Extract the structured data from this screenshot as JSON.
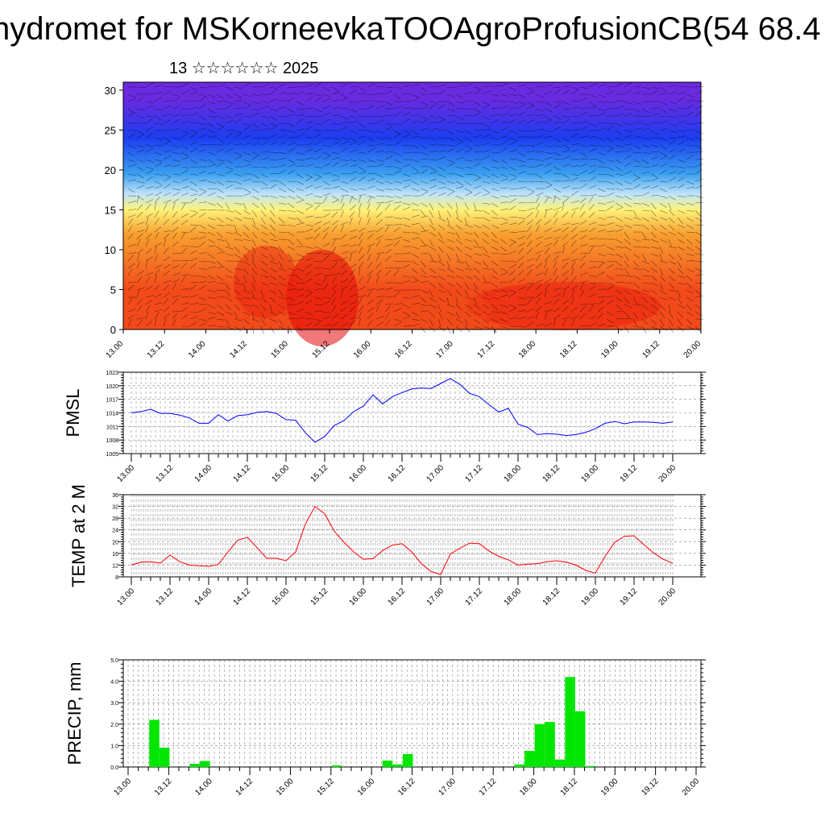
{
  "title": "hydromet for MSKorneevkaTOOAgroProfusionCB(54 68.4",
  "subtitle": "13 ☆☆☆☆☆☆ 2025",
  "time_ticks": [
    "13.00",
    "13.12",
    "14.00",
    "14.12",
    "15.00",
    "15.12",
    "16.00",
    "16.12",
    "17.00",
    "17.12",
    "18.00",
    "18.12",
    "19.00",
    "19.12",
    "20.00"
  ],
  "chart_data": [
    {
      "type": "heatmap",
      "name": "cross-section",
      "ylim": [
        0,
        31
      ],
      "yticks": [
        0,
        5,
        10,
        15,
        20,
        25,
        30
      ],
      "grid": false,
      "color_scale": [
        "#e81010",
        "#f0521a",
        "#f88a30",
        "#fcc84a",
        "#fff680",
        "#bfe8ff",
        "#3a9cf0",
        "#1b3ef0",
        "#4b1ae0",
        "#6e2ae0"
      ],
      "bands": [
        {
          "y": [
            0,
            10
          ],
          "color": "#f24a1a"
        },
        {
          "y": [
            10,
            14
          ],
          "color": "#f8a030"
        },
        {
          "y": [
            14,
            16
          ],
          "color": "#fff27a"
        },
        {
          "y": [
            16,
            18
          ],
          "color": "#bfe4f8"
        },
        {
          "y": [
            18,
            21
          ],
          "color": "#3aa0f0"
        },
        {
          "y": [
            21,
            27
          ],
          "color": "#1b3ef0"
        },
        {
          "y": [
            27,
            31
          ],
          "color": "#6a2ae0"
        }
      ]
    },
    {
      "type": "line",
      "ylabel": "PMSL",
      "ylim": [
        1005,
        1023
      ],
      "yticks": [
        1005,
        1008,
        1011,
        1014,
        1017,
        1020,
        1023
      ],
      "grid": true,
      "color": "#0000ff",
      "x": [
        0,
        1,
        2,
        3,
        4,
        5,
        6,
        7,
        8,
        9,
        10,
        11,
        12,
        13,
        14,
        15,
        16,
        17,
        18,
        19,
        20,
        21,
        22,
        23,
        24,
        25,
        26,
        27,
        28,
        29,
        30,
        31,
        32,
        33,
        34,
        35,
        36,
        37,
        38,
        39,
        40,
        41,
        42,
        43,
        44,
        45,
        46,
        47,
        48,
        49,
        50,
        51,
        52,
        53,
        54,
        55,
        56
      ],
      "values": [
        1014.0,
        1014.3,
        1014.8,
        1013.9,
        1013.9,
        1013.5,
        1012.9,
        1011.7,
        1011.7,
        1013.6,
        1012.2,
        1013.4,
        1013.6,
        1014.1,
        1014.3,
        1013.9,
        1012.5,
        1012.4,
        1009.6,
        1007.5,
        1008.8,
        1011.2,
        1012.3,
        1014.3,
        1015.5,
        1018.0,
        1016.0,
        1017.6,
        1018.5,
        1019.3,
        1019.5,
        1019.4,
        1020.5,
        1021.6,
        1020.3,
        1018.3,
        1017.6,
        1015.8,
        1014.2,
        1015.0,
        1011.5,
        1010.8,
        1009.2,
        1009.4,
        1009.3,
        1009.0,
        1009.2,
        1009.7,
        1010.5,
        1011.7,
        1012.1,
        1011.6,
        1012.0,
        1012.0,
        1011.9,
        1011.7,
        1012.0
      ]
    },
    {
      "type": "line",
      "ylabel": "TEMP at 2 M",
      "ylim": [
        8,
        36
      ],
      "yticks": [
        8,
        12,
        16,
        20,
        24,
        28,
        32,
        36
      ],
      "grid": true,
      "color": "#ff0000",
      "x": [
        0,
        2,
        4,
        6,
        8,
        10,
        12,
        14,
        16,
        18,
        20,
        22,
        24,
        26,
        28,
        30,
        32,
        34,
        36,
        38,
        40,
        42,
        44,
        46,
        48,
        50,
        52,
        54,
        56,
        58,
        60,
        62,
        64,
        66,
        68,
        70,
        72,
        74,
        76,
        78,
        80,
        82,
        84,
        86,
        88,
        90,
        92,
        94,
        96,
        98,
        100,
        102,
        104,
        106,
        108,
        110,
        112
      ],
      "values": [
        12.0,
        13.0,
        13.2,
        12.7,
        15.4,
        13.2,
        12.0,
        11.8,
        11.6,
        12.2,
        16.5,
        20.5,
        21.5,
        18.0,
        14.3,
        14.3,
        13.5,
        16.5,
        26.0,
        32.0,
        29.5,
        23.5,
        19.8,
        16.5,
        14.0,
        14.2,
        17.0,
        18.8,
        19.3,
        16.5,
        12.5,
        9.8,
        8.8,
        15.8,
        17.8,
        19.5,
        19.3,
        16.8,
        15.0,
        13.8,
        12.0,
        12.3,
        12.5,
        13.2,
        13.5,
        13.0,
        12.0,
        10.2,
        9.3,
        15.0,
        19.8,
        21.8,
        22.0,
        19.0,
        16.2,
        14.0,
        12.6
      ]
    },
    {
      "type": "bar",
      "ylabel": "PRECIP, mm",
      "ylim": [
        0,
        5
      ],
      "yticks": [
        "0.0",
        "1.0",
        "2.0",
        "3.0",
        "4.0",
        "5.0"
      ],
      "grid": true,
      "color": "#00e600",
      "x": [
        2,
        3,
        6,
        7,
        20,
        25,
        26,
        27,
        38,
        39,
        40,
        41,
        42,
        43,
        44,
        45
      ],
      "values": [
        2.2,
        0.9,
        0.15,
        0.28,
        0.08,
        0.3,
        0.12,
        0.6,
        0.12,
        0.75,
        2.0,
        2.1,
        0.35,
        4.2,
        2.6,
        0.05
      ]
    }
  ]
}
